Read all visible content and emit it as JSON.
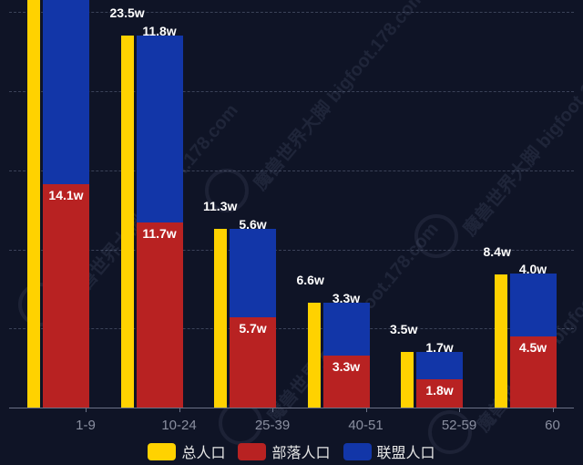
{
  "chart_data": {
    "type": "bar",
    "title": "",
    "xlabel": "",
    "ylabel": "",
    "ylim": [
      0,
      26
    ],
    "unit": "w",
    "grid": true,
    "legend_position": "bottom",
    "categories": [
      "1-9",
      "10-24",
      "25-39",
      "40-51",
      "52-59",
      "60"
    ],
    "series": [
      {
        "name": "总人口",
        "color": "#ffd200",
        "values": [
          26.5,
          23.5,
          11.3,
          6.6,
          3.5,
          8.4
        ],
        "labels": [
          "",
          "23.5w",
          "11.3w",
          "6.6w",
          "3.5w",
          "8.4w"
        ]
      },
      {
        "name": "部落人口",
        "color": "#b82222",
        "stack": "faction",
        "values": [
          14.1,
          11.7,
          5.7,
          3.3,
          1.8,
          4.5
        ],
        "labels": [
          "14.1w",
          "11.7w",
          "5.7w",
          "3.3w",
          "1.8w",
          "4.5w"
        ]
      },
      {
        "name": "联盟人口",
        "color": "#1236a8",
        "stack": "faction",
        "values": [
          12.4,
          11.8,
          5.6,
          3.3,
          1.7,
          4.0
        ],
        "labels": [
          "",
          "11.8w",
          "5.6w",
          "3.3w",
          "1.7w",
          "4.0w"
        ]
      }
    ],
    "gridlines": [
      5,
      10,
      15,
      20,
      25
    ],
    "annotations": [
      "Watermark: 魔兽世界大脚 bigfoot.178.com"
    ]
  },
  "legend": {
    "items": [
      {
        "label": "总人口",
        "color": "#ffd200"
      },
      {
        "label": "部落人口",
        "color": "#b82222"
      },
      {
        "label": "联盟人口",
        "color": "#1236a8"
      }
    ]
  },
  "watermark": {
    "text": "魔兽世界大脚",
    "url_text": "bigfoot.178.com"
  }
}
